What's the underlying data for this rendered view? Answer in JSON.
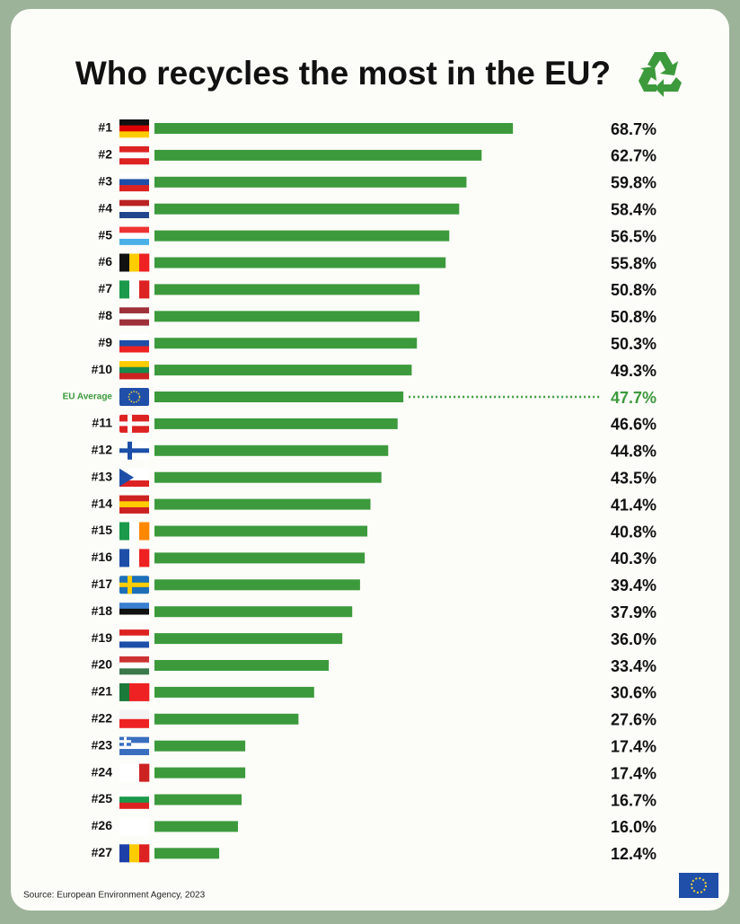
{
  "chart_data": {
    "type": "bar",
    "orientation": "horizontal",
    "title": "Who recycles the most in the EU?",
    "categories": [
      "#1",
      "#2",
      "#3",
      "#4",
      "#5",
      "#6",
      "#7",
      "#8",
      "#9",
      "#10",
      "EU Average",
      "#11",
      "#12",
      "#13",
      "#14",
      "#15",
      "#16",
      "#17",
      "#18",
      "#19",
      "#20",
      "#21",
      "#22",
      "#23",
      "#24",
      "#25",
      "#26",
      "#27"
    ],
    "values": [
      68.7,
      62.7,
      59.8,
      58.4,
      56.5,
      55.8,
      50.8,
      50.8,
      50.3,
      49.3,
      47.7,
      46.6,
      44.8,
      43.5,
      41.4,
      40.8,
      40.3,
      39.4,
      37.9,
      36.0,
      33.4,
      30.6,
      27.6,
      17.4,
      17.4,
      16.7,
      16.0,
      12.4
    ],
    "value_labels": [
      "68.7%",
      "62.7%",
      "59.8%",
      "58.4%",
      "56.5%",
      "55.8%",
      "50.8%",
      "50.8%",
      "50.3%",
      "49.3%",
      "47.7%",
      "46.6%",
      "44.8%",
      "43.5%",
      "41.4%",
      "40.8%",
      "40.3%",
      "39.4%",
      "37.9%",
      "36.0%",
      "33.4%",
      "30.6%",
      "27.6%",
      "17.4%",
      "17.4%",
      "16.7%",
      "16.0%",
      "12.4%"
    ],
    "color": "#3c9a3c",
    "label_colors": [
      "#111",
      "#111",
      "#111",
      "#111",
      "#111",
      "#111",
      "#111",
      "#111",
      "#111",
      "#111",
      "#3c9a3c",
      "#111",
      "#111",
      "#111",
      "#111",
      "#111",
      "#111",
      "#111",
      "#111",
      "#111",
      "#111",
      "#111",
      "#111",
      "#111",
      "#111",
      "#111",
      "#111",
      "#111"
    ],
    "source": "Source: European Environment Agency, 2023"
  }
}
